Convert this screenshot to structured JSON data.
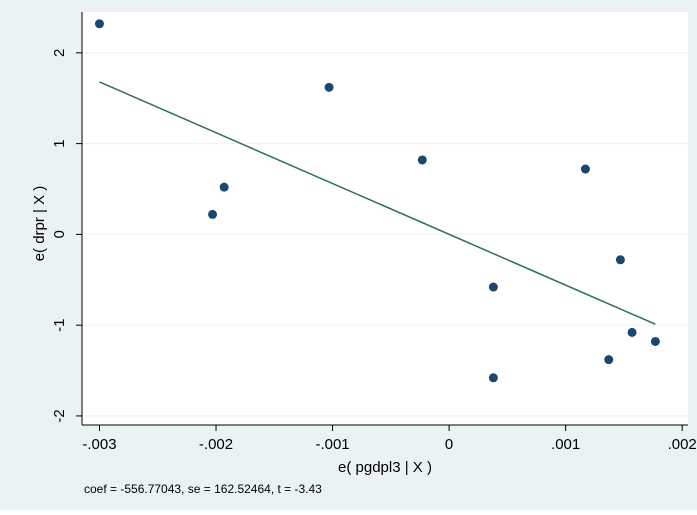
{
  "chart_data": {
    "type": "scatter",
    "xlabel": "e( pgdpl3 | X )",
    "ylabel": "e( drpr | X )",
    "note": "coef = -556.77043, se = 162.52464, t = -3.43",
    "xlim": [
      -0.00315,
      0.00205
    ],
    "ylim": [
      -2.1,
      2.45
    ],
    "x_ticks": [
      -0.003,
      -0.002,
      -0.001,
      0,
      0.001,
      0.002
    ],
    "x_tick_labels": [
      "-.003",
      "-.002",
      "-.001",
      "0",
      ".001",
      ".002"
    ],
    "y_ticks": [
      -2,
      -1,
      0,
      1,
      2
    ],
    "y_tick_labels": [
      "-2",
      "-1",
      "0",
      "1",
      "2"
    ],
    "grid": true,
    "points": [
      {
        "x": -0.003,
        "y": 2.32
      },
      {
        "x": -0.00203,
        "y": 0.22
      },
      {
        "x": -0.00193,
        "y": 0.52
      },
      {
        "x": -0.00103,
        "y": 1.62
      },
      {
        "x": -0.00023,
        "y": 0.82
      },
      {
        "x": 0.00038,
        "y": -0.58
      },
      {
        "x": 0.00038,
        "y": -1.58
      },
      {
        "x": 0.00117,
        "y": 0.72
      },
      {
        "x": 0.00137,
        "y": -1.38
      },
      {
        "x": 0.00147,
        "y": -0.28
      },
      {
        "x": 0.00157,
        "y": -1.08
      },
      {
        "x": 0.00177,
        "y": -1.18
      }
    ],
    "fit_line": {
      "x": [
        -0.003,
        0.00177
      ],
      "y": [
        1.68,
        -0.99
      ]
    }
  },
  "colors": {
    "outer_bg": "#eaf2f3",
    "plot_bg": "#ffffff",
    "grid": "#eaf2f3",
    "axis": "#000000",
    "point": "#1a476f",
    "fit_line": "#2e6e62"
  }
}
